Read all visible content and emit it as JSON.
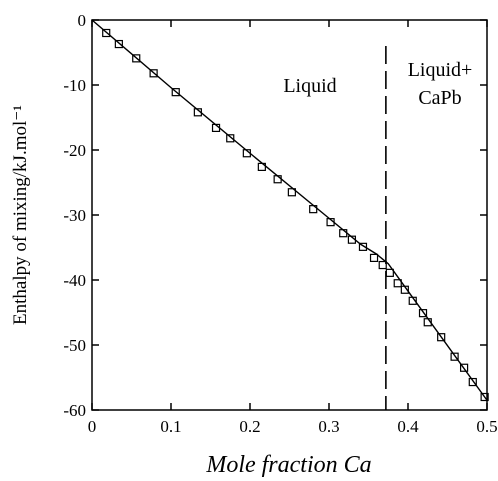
{
  "chart_data": {
    "type": "scatter",
    "x_label": "Mole fraction Ca",
    "y_label": "Enthalpy of mixing/kJ.mol⁻¹",
    "xlim": [
      0,
      0.5
    ],
    "ylim": [
      -60,
      0
    ],
    "xticks": [
      0,
      0.1,
      0.2,
      0.3,
      0.4,
      0.5
    ],
    "yticks": [
      0,
      -10,
      -20,
      -30,
      -40,
      -50,
      -60
    ],
    "annotations": [
      "Liquid",
      "Liquid+",
      "CaPb"
    ],
    "phase_boundary_x": 0.372,
    "series": [
      {
        "type": "scatter",
        "color": "#000000",
        "x": [
          0.018,
          0.034,
          0.056,
          0.078,
          0.106,
          0.134,
          0.157,
          0.175,
          0.196,
          0.215,
          0.235,
          0.253,
          0.28,
          0.302,
          0.318,
          0.329,
          0.343,
          0.357,
          0.368,
          0.377,
          0.387,
          0.396,
          0.406,
          0.419,
          0.425,
          0.442,
          0.459,
          0.471,
          0.482,
          0.497
        ],
        "values": [
          -2.0,
          -3.7,
          -5.9,
          -8.2,
          -11.1,
          -14.2,
          -16.6,
          -18.2,
          -20.5,
          -22.6,
          -24.5,
          -26.5,
          -29.1,
          -31.1,
          -32.8,
          -33.8,
          -34.9,
          -36.6,
          -37.7,
          -38.9,
          -40.5,
          -41.5,
          -43.2,
          -45.1,
          -46.5,
          -48.8,
          -51.8,
          -53.5,
          -55.7,
          -58.0
        ]
      },
      {
        "type": "line",
        "color": "#000000",
        "x": [
          0,
          0.1,
          0.2,
          0.3,
          0.34,
          0.36,
          0.375,
          0.4,
          0.5
        ],
        "values": [
          0,
          -10.4,
          -20.5,
          -30.5,
          -34.5,
          -36.0,
          -37.5,
          -41.7,
          -58.5
        ]
      }
    ]
  }
}
